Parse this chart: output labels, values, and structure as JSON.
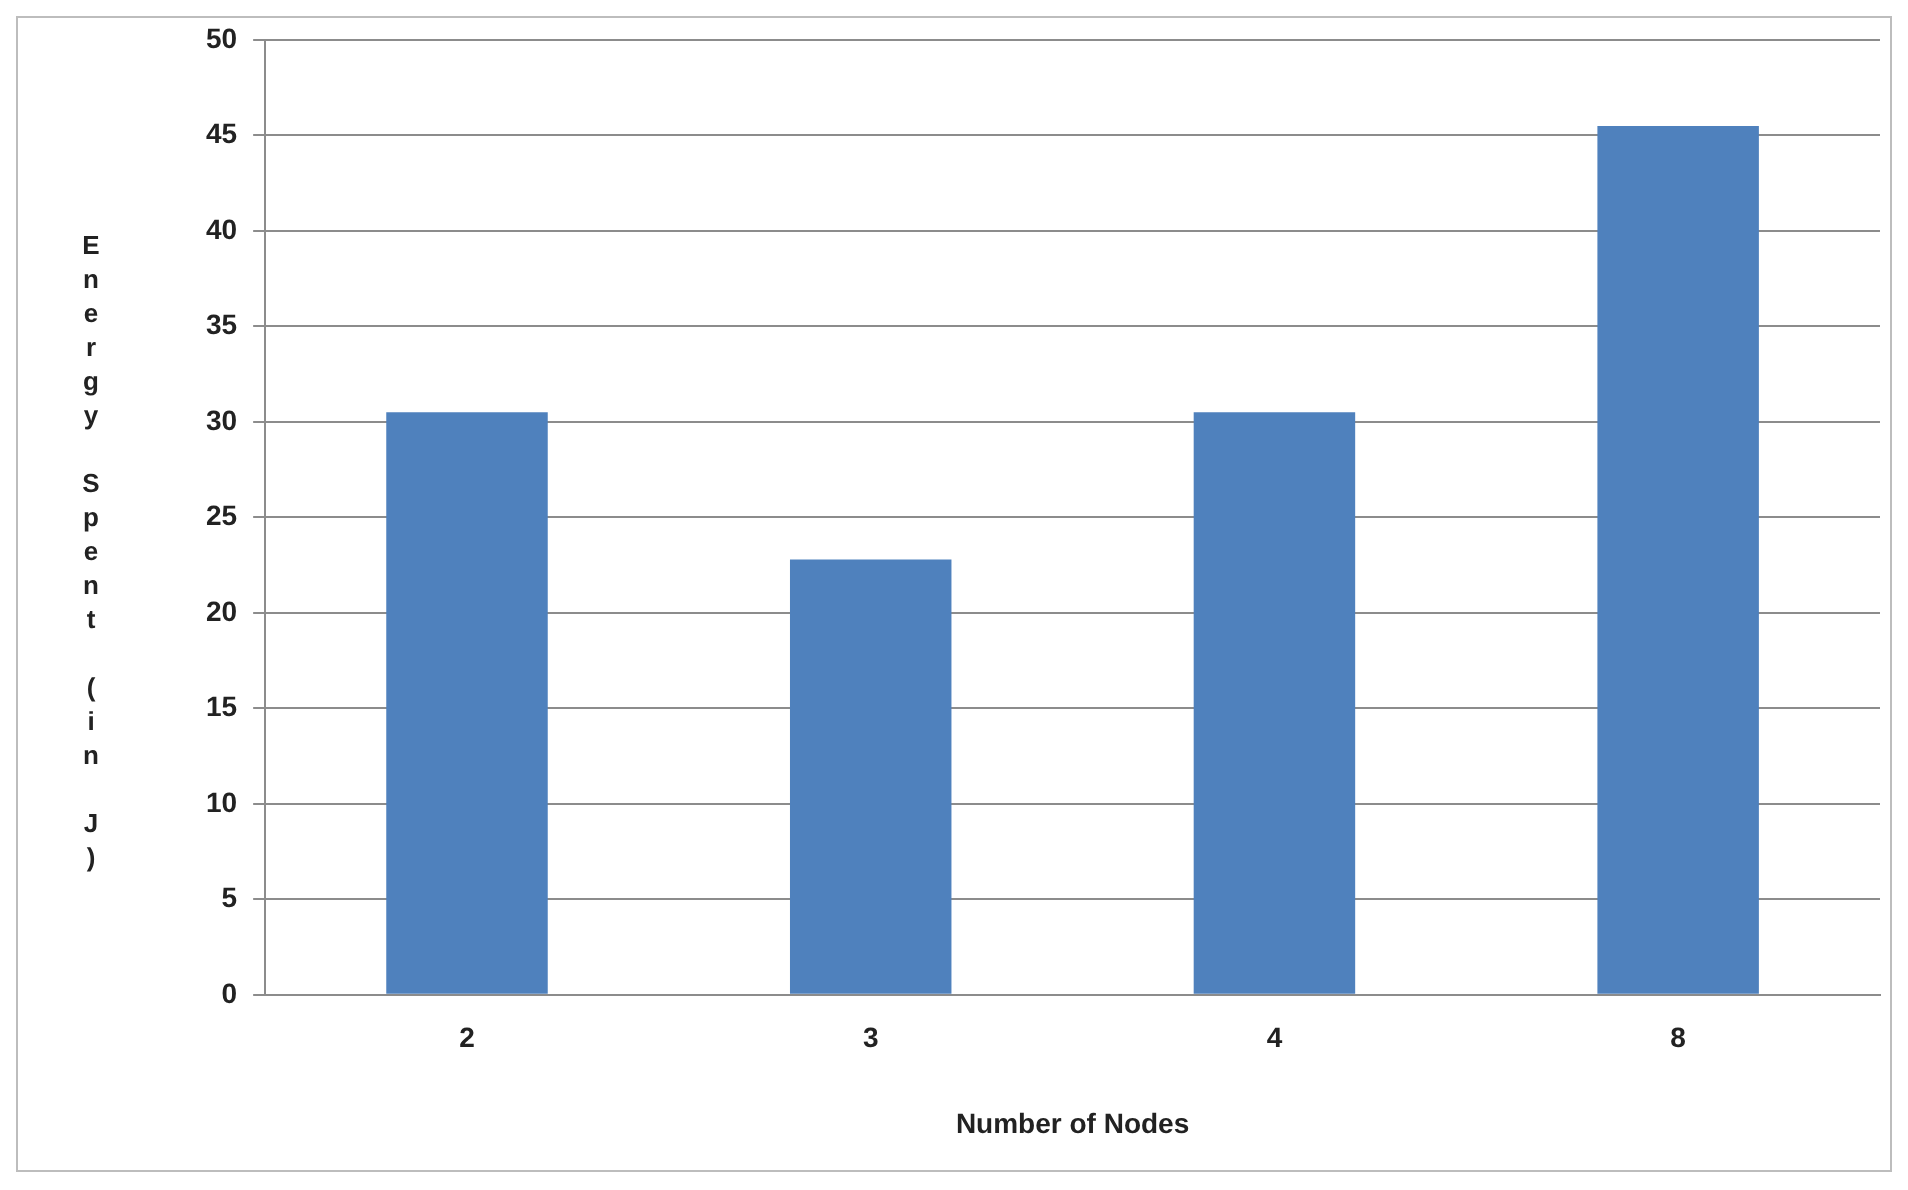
{
  "chart_data": {
    "type": "bar",
    "categories": [
      "2",
      "3",
      "4",
      "8"
    ],
    "values": [
      30.5,
      22.8,
      30.5,
      45.5
    ],
    "color": "#4f81bd",
    "xlabel": "Number of Nodes",
    "ylabel": "Energy Spent (in J)",
    "ylim": [
      0,
      50
    ],
    "yticks": [
      0,
      5,
      10,
      15,
      20,
      25,
      30,
      35,
      40,
      45,
      50
    ],
    "grid": "y",
    "legend": false
  }
}
